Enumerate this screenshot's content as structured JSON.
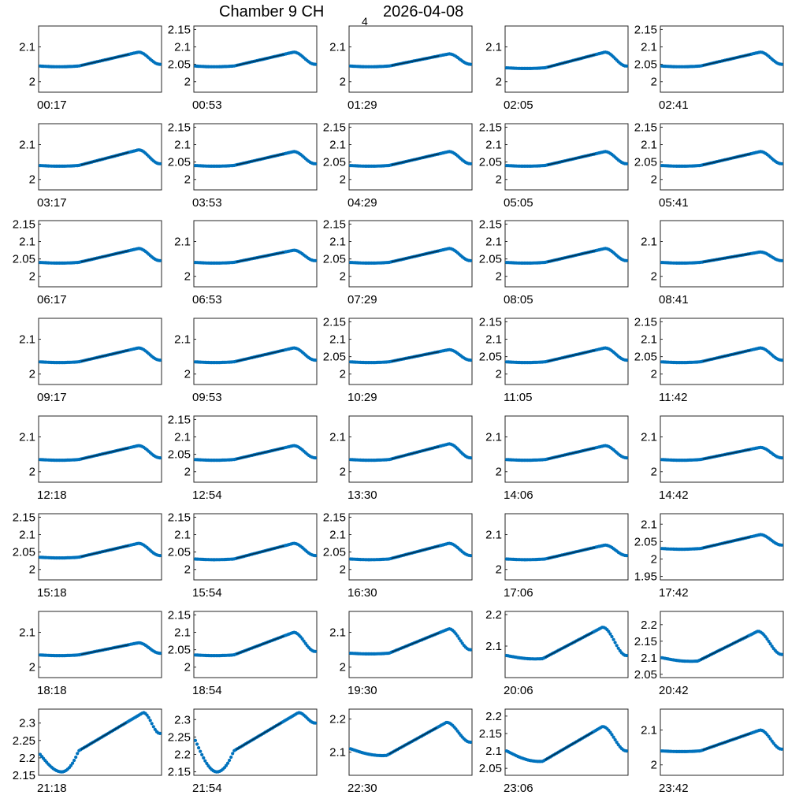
{
  "figure": {
    "title": "Chamber 9 CH",
    "title_subscript": "4",
    "date": "2026-04-08",
    "marker_color": "#0072bd",
    "fit_color": "#000000"
  },
  "chart_data": [
    {
      "type": "scatter",
      "label": "00:17",
      "ylim": [
        1.97,
        2.16
      ],
      "yticks": [
        2,
        2.1
      ],
      "shape": "normal",
      "base": 2.045,
      "peak": 2.085,
      "end": 2.05
    },
    {
      "type": "scatter",
      "label": "00:53",
      "ylim": [
        1.97,
        2.16
      ],
      "yticks": [
        2,
        2.05,
        2.1,
        2.15
      ],
      "shape": "normal",
      "base": 2.045,
      "peak": 2.085,
      "end": 2.05
    },
    {
      "type": "scatter",
      "label": "01:29",
      "ylim": [
        1.97,
        2.16
      ],
      "yticks": [
        2,
        2.1
      ],
      "shape": "normal",
      "base": 2.045,
      "peak": 2.08,
      "end": 2.05
    },
    {
      "type": "scatter",
      "label": "02:05",
      "ylim": [
        1.97,
        2.16
      ],
      "yticks": [
        2,
        2.1
      ],
      "shape": "normal",
      "base": 2.04,
      "peak": 2.085,
      "end": 2.045
    },
    {
      "type": "scatter",
      "label": "02:41",
      "ylim": [
        1.97,
        2.16
      ],
      "yticks": [
        2,
        2.05,
        2.1,
        2.15
      ],
      "shape": "normal",
      "base": 2.045,
      "peak": 2.085,
      "end": 2.05
    },
    {
      "type": "scatter",
      "label": "03:17",
      "ylim": [
        1.97,
        2.16
      ],
      "yticks": [
        2,
        2.1
      ],
      "shape": "normal",
      "base": 2.04,
      "peak": 2.085,
      "end": 2.045
    },
    {
      "type": "scatter",
      "label": "03:53",
      "ylim": [
        1.97,
        2.16
      ],
      "yticks": [
        2,
        2.05,
        2.1,
        2.15
      ],
      "shape": "normal",
      "base": 2.04,
      "peak": 2.08,
      "end": 2.045
    },
    {
      "type": "scatter",
      "label": "04:29",
      "ylim": [
        1.97,
        2.16
      ],
      "yticks": [
        2,
        2.05,
        2.1,
        2.15
      ],
      "shape": "normal",
      "base": 2.04,
      "peak": 2.08,
      "end": 2.045
    },
    {
      "type": "scatter",
      "label": "05:05",
      "ylim": [
        1.97,
        2.16
      ],
      "yticks": [
        2,
        2.05,
        2.1,
        2.15
      ],
      "shape": "normal",
      "base": 2.04,
      "peak": 2.08,
      "end": 2.045
    },
    {
      "type": "scatter",
      "label": "05:41",
      "ylim": [
        1.97,
        2.16
      ],
      "yticks": [
        2,
        2.05,
        2.1,
        2.15
      ],
      "shape": "normal",
      "base": 2.04,
      "peak": 2.08,
      "end": 2.045
    },
    {
      "type": "scatter",
      "label": "06:17",
      "ylim": [
        1.97,
        2.16
      ],
      "yticks": [
        2,
        2.05,
        2.1,
        2.15
      ],
      "shape": "normal",
      "base": 2.04,
      "peak": 2.08,
      "end": 2.045
    },
    {
      "type": "scatter",
      "label": "06:53",
      "ylim": [
        1.97,
        2.16
      ],
      "yticks": [
        2,
        2.1
      ],
      "shape": "normal",
      "base": 2.04,
      "peak": 2.075,
      "end": 2.045
    },
    {
      "type": "scatter",
      "label": "07:29",
      "ylim": [
        1.97,
        2.16
      ],
      "yticks": [
        2,
        2.05,
        2.1,
        2.15
      ],
      "shape": "normal",
      "base": 2.04,
      "peak": 2.08,
      "end": 2.045
    },
    {
      "type": "scatter",
      "label": "08:05",
      "ylim": [
        1.97,
        2.16
      ],
      "yticks": [
        2,
        2.05,
        2.1,
        2.15
      ],
      "shape": "normal",
      "base": 2.04,
      "peak": 2.08,
      "end": 2.045
    },
    {
      "type": "scatter",
      "label": "08:41",
      "ylim": [
        1.97,
        2.16
      ],
      "yticks": [
        2,
        2.1
      ],
      "shape": "normal",
      "base": 2.04,
      "peak": 2.07,
      "end": 2.045
    },
    {
      "type": "scatter",
      "label": "09:17",
      "ylim": [
        1.97,
        2.16
      ],
      "yticks": [
        2,
        2.1
      ],
      "shape": "normal",
      "base": 2.035,
      "peak": 2.075,
      "end": 2.04
    },
    {
      "type": "scatter",
      "label": "09:53",
      "ylim": [
        1.97,
        2.16
      ],
      "yticks": [
        2,
        2.1
      ],
      "shape": "normal",
      "base": 2.035,
      "peak": 2.075,
      "end": 2.04
    },
    {
      "type": "scatter",
      "label": "10:29",
      "ylim": [
        1.97,
        2.16
      ],
      "yticks": [
        2,
        2.05,
        2.1,
        2.15
      ],
      "shape": "normal",
      "base": 2.035,
      "peak": 2.07,
      "end": 2.04
    },
    {
      "type": "scatter",
      "label": "11:05",
      "ylim": [
        1.97,
        2.16
      ],
      "yticks": [
        2,
        2.05,
        2.1,
        2.15
      ],
      "shape": "normal",
      "base": 2.035,
      "peak": 2.075,
      "end": 2.04
    },
    {
      "type": "scatter",
      "label": "11:42",
      "ylim": [
        1.97,
        2.16
      ],
      "yticks": [
        2,
        2.05,
        2.1,
        2.15
      ],
      "shape": "normal",
      "base": 2.035,
      "peak": 2.075,
      "end": 2.04
    },
    {
      "type": "scatter",
      "label": "12:18",
      "ylim": [
        1.97,
        2.16
      ],
      "yticks": [
        2,
        2.1
      ],
      "shape": "normal",
      "base": 2.035,
      "peak": 2.075,
      "end": 2.04
    },
    {
      "type": "scatter",
      "label": "12:54",
      "ylim": [
        1.97,
        2.16
      ],
      "yticks": [
        2,
        2.05,
        2.1,
        2.15
      ],
      "shape": "normal",
      "base": 2.035,
      "peak": 2.075,
      "end": 2.04
    },
    {
      "type": "scatter",
      "label": "13:30",
      "ylim": [
        1.97,
        2.16
      ],
      "yticks": [
        2,
        2.1
      ],
      "shape": "normal",
      "base": 2.035,
      "peak": 2.08,
      "end": 2.04
    },
    {
      "type": "scatter",
      "label": "14:06",
      "ylim": [
        1.97,
        2.16
      ],
      "yticks": [
        2,
        2.1
      ],
      "shape": "normal",
      "base": 2.035,
      "peak": 2.075,
      "end": 2.04
    },
    {
      "type": "scatter",
      "label": "14:42",
      "ylim": [
        1.97,
        2.16
      ],
      "yticks": [
        2,
        2.1
      ],
      "shape": "normal",
      "base": 2.035,
      "peak": 2.07,
      "end": 2.04
    },
    {
      "type": "scatter",
      "label": "15:18",
      "ylim": [
        1.97,
        2.16
      ],
      "yticks": [
        2,
        2.05,
        2.1,
        2.15
      ],
      "shape": "normal",
      "base": 2.035,
      "peak": 2.075,
      "end": 2.04
    },
    {
      "type": "scatter",
      "label": "15:54",
      "ylim": [
        1.97,
        2.16
      ],
      "yticks": [
        2,
        2.05,
        2.1,
        2.15
      ],
      "shape": "normal",
      "base": 2.03,
      "peak": 2.075,
      "end": 2.04
    },
    {
      "type": "scatter",
      "label": "16:30",
      "ylim": [
        1.97,
        2.16
      ],
      "yticks": [
        2,
        2.05,
        2.1,
        2.15
      ],
      "shape": "normal",
      "base": 2.03,
      "peak": 2.075,
      "end": 2.04
    },
    {
      "type": "scatter",
      "label": "17:06",
      "ylim": [
        1.97,
        2.16
      ],
      "yticks": [
        2,
        2.1
      ],
      "shape": "normal",
      "base": 2.03,
      "peak": 2.07,
      "end": 2.04
    },
    {
      "type": "scatter",
      "label": "17:42",
      "ylim": [
        1.94,
        2.13
      ],
      "yticks": [
        1.95,
        2,
        2.05,
        2.1
      ],
      "shape": "normal",
      "base": 2.03,
      "peak": 2.07,
      "end": 2.04
    },
    {
      "type": "scatter",
      "label": "18:18",
      "ylim": [
        1.97,
        2.16
      ],
      "yticks": [
        2,
        2.1
      ],
      "shape": "normal",
      "base": 2.035,
      "peak": 2.07,
      "end": 2.04
    },
    {
      "type": "scatter",
      "label": "18:54",
      "ylim": [
        1.97,
        2.16
      ],
      "yticks": [
        2,
        2.05,
        2.1,
        2.15
      ],
      "shape": "normal",
      "base": 2.035,
      "peak": 2.1,
      "end": 2.045
    },
    {
      "type": "scatter",
      "label": "19:30",
      "ylim": [
        1.97,
        2.16
      ],
      "yticks": [
        2,
        2.1
      ],
      "shape": "normal",
      "base": 2.04,
      "peak": 2.11,
      "end": 2.05
    },
    {
      "type": "scatter",
      "label": "20:06",
      "ylim": [
        2.0,
        2.21
      ],
      "yticks": [
        2.1,
        2.2
      ],
      "shape": "dip",
      "base": 2.07,
      "dip": 2.06,
      "peak": 2.16,
      "end": 2.07
    },
    {
      "type": "scatter",
      "label": "20:42",
      "ylim": [
        2.04,
        2.24
      ],
      "yticks": [
        2.05,
        2.1,
        2.15,
        2.2
      ],
      "shape": "dip",
      "base": 2.1,
      "dip": 2.09,
      "peak": 2.18,
      "end": 2.11
    },
    {
      "type": "scatter",
      "label": "21:18",
      "ylim": [
        2.15,
        2.34
      ],
      "yticks": [
        2.15,
        2.2,
        2.25,
        2.3
      ],
      "shape": "deepdip",
      "base": 2.21,
      "dip": 2.16,
      "peak": 2.33,
      "end": 2.27
    },
    {
      "type": "scatter",
      "label": "21:54",
      "ylim": [
        2.14,
        2.33
      ],
      "yticks": [
        2.15,
        2.2,
        2.25,
        2.3
      ],
      "shape": "deepdip",
      "base": 2.24,
      "dip": 2.15,
      "peak": 2.32,
      "end": 2.29
    },
    {
      "type": "scatter",
      "label": "22:30",
      "ylim": [
        2.03,
        2.23
      ],
      "yticks": [
        2.1,
        2.2
      ],
      "shape": "dip",
      "base": 2.11,
      "dip": 2.09,
      "peak": 2.19,
      "end": 2.13
    },
    {
      "type": "scatter",
      "label": "23:06",
      "ylim": [
        2.03,
        2.22
      ],
      "yticks": [
        2.05,
        2.1,
        2.15,
        2.2
      ],
      "shape": "dip",
      "base": 2.1,
      "dip": 2.07,
      "peak": 2.17,
      "end": 2.1
    },
    {
      "type": "scatter",
      "label": "23:42",
      "ylim": [
        1.97,
        2.16
      ],
      "yticks": [
        2,
        2.1
      ],
      "shape": "normal",
      "base": 2.04,
      "peak": 2.1,
      "end": 2.045
    }
  ]
}
